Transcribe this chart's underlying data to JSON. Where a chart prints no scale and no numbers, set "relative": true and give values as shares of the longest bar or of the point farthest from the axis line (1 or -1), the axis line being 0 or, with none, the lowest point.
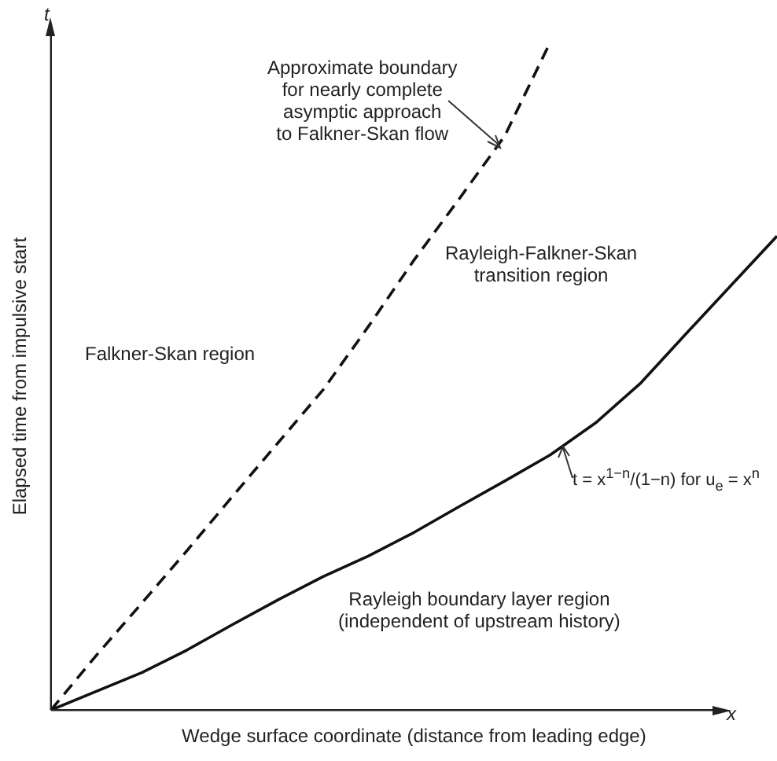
{
  "chart_data": {
    "type": "line",
    "relative": true,
    "xlabel": "Wedge surface coordinate (distance from leading edge)",
    "ylabel": "Elapsed time from impulsive start",
    "marker": "none",
    "categories": [
      null,
      null,
      null,
      null,
      null,
      null,
      null,
      null,
      null,
      null,
      null,
      null,
      null,
      null,
      null,
      null,
      null
    ],
    "series": [
      {
        "color": "#111111",
        "line_style": "dashed",
        "values": [
          0,
          0.082,
          0.16,
          0.239,
          0.32,
          0.4,
          0.48,
          0.575,
          0.674,
          0.766,
          0.86,
          1,
          null,
          null,
          null,
          null,
          null
        ]
      },
      {
        "color": "#111111",
        "line_style": "solid",
        "values": [
          0,
          0.028,
          0.056,
          0.09,
          0.128,
          0.165,
          0.2,
          0.231,
          0.266,
          0.305,
          0.343,
          0.382,
          0.43,
          0.49,
          0.564,
          0.637,
          0.71
        ]
      }
    ],
    "annotations": [
      "Approximate boundary\nfor nearly complete\nasymptic approach\nto Falkner-Skan flow",
      "Falkner-Skan region",
      "Rayleigh-Falkner-Skan\ntransition region",
      "Rayleigh boundary layer region\n(independent of upstream history)",
      "t = x$^{1−n}$/(1−n) for u$_{e}$ = x$^{n}$",
      "x",
      "t"
    ]
  }
}
